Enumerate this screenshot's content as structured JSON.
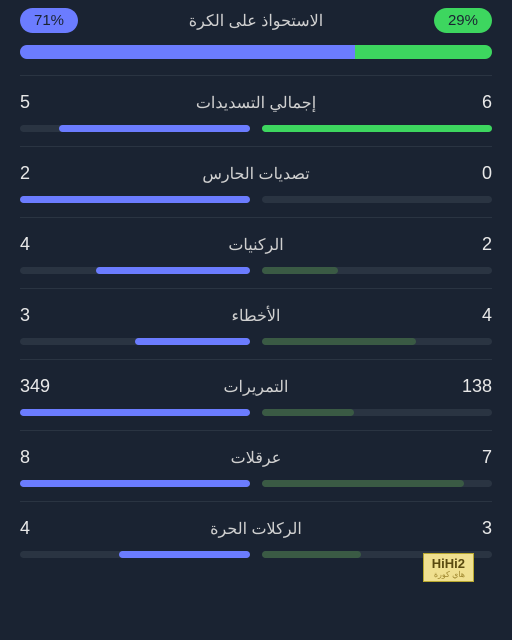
{
  "colors": {
    "background": "#1a2332",
    "left_team": "#6b7cff",
    "right_team": "#3dd65f",
    "right_team_dim": "#3a5a44",
    "track": "#2a3442",
    "text": "#e8e8e8",
    "divider": "#2a3442"
  },
  "possession": {
    "title": "الاستحواذ على الكرة",
    "left_percent": "71%",
    "right_percent": "29%",
    "left_width": 71,
    "right_width": 29
  },
  "stats": [
    {
      "label": "إجمالي التسديدات",
      "left_value": "5",
      "right_value": "6",
      "left_fill": 83,
      "right_fill": 100,
      "right_highlight": true
    },
    {
      "label": "تصديات الحارس",
      "left_value": "2",
      "right_value": "0",
      "left_fill": 100,
      "right_fill": 0,
      "right_highlight": false
    },
    {
      "label": "الركنيات",
      "left_value": "4",
      "right_value": "2",
      "left_fill": 67,
      "right_fill": 33,
      "right_highlight": false
    },
    {
      "label": "الأخطاء",
      "left_value": "3",
      "right_value": "4",
      "left_fill": 50,
      "right_fill": 67,
      "right_highlight": false
    },
    {
      "label": "التمريرات",
      "left_value": "349",
      "right_value": "138",
      "left_fill": 100,
      "right_fill": 40,
      "right_highlight": false
    },
    {
      "label": "عرقلات",
      "left_value": "8",
      "right_value": "7",
      "left_fill": 100,
      "right_fill": 88,
      "right_highlight": false
    },
    {
      "label": "الركلات الحرة",
      "left_value": "4",
      "right_value": "3",
      "left_fill": 57,
      "right_fill": 43,
      "right_highlight": false
    }
  ],
  "watermark": {
    "main": "HiHi2",
    "sub": "هاي كورة"
  }
}
